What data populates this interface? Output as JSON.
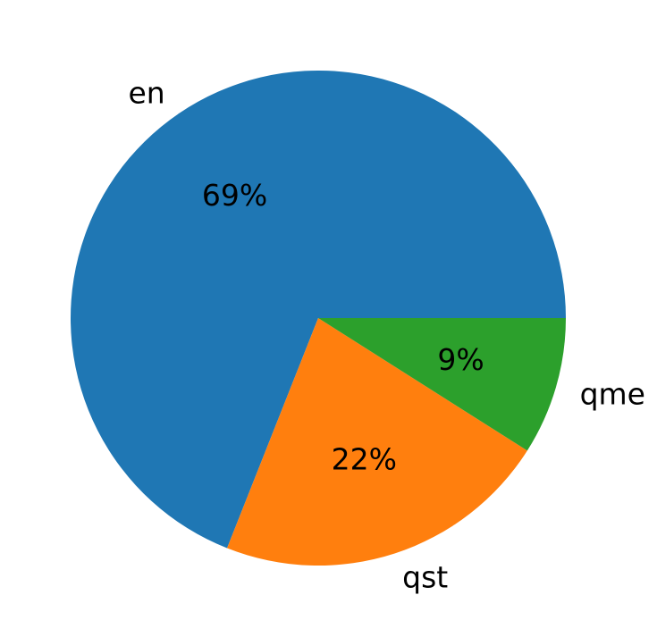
{
  "chart_data": {
    "type": "pie",
    "labels": [
      "en",
      "qst",
      "qme"
    ],
    "values": [
      69,
      22,
      9
    ],
    "percent_labels": [
      "69%",
      "22%",
      "9%"
    ],
    "colors": [
      "#1f77b4",
      "#ff7f0e",
      "#2ca02c"
    ],
    "start_angle_deg": 0,
    "direction": "counterclockwise",
    "legend": "none"
  }
}
